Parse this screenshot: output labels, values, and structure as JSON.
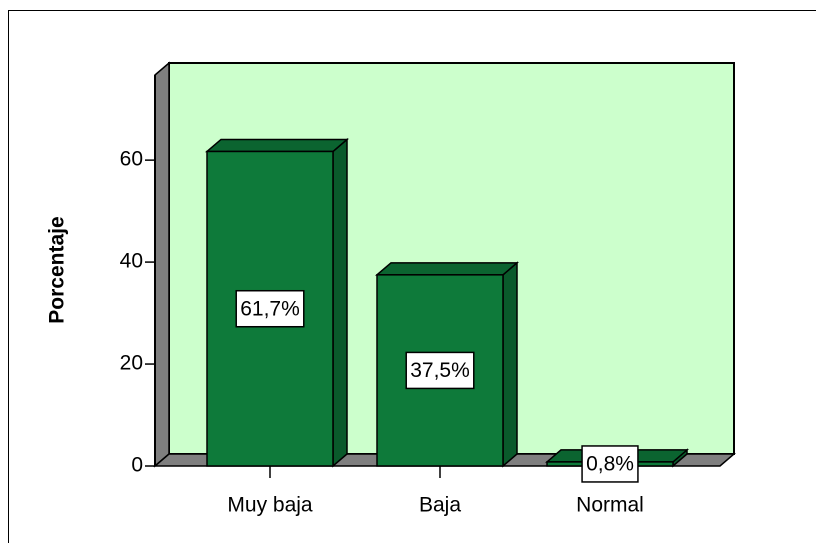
{
  "chart_data": {
    "type": "bar",
    "y_label": "Porcentaje",
    "categories": [
      "Muy baja",
      "Baja",
      "Normal"
    ],
    "values": [
      61.7,
      37.5,
      0.8
    ],
    "value_labels": [
      "61,7%",
      "37,5%",
      "0,8%"
    ],
    "color": "#0e7a3a",
    "ylim": [
      0,
      76.7
    ],
    "yticks": [
      0,
      20,
      40,
      60
    ]
  }
}
